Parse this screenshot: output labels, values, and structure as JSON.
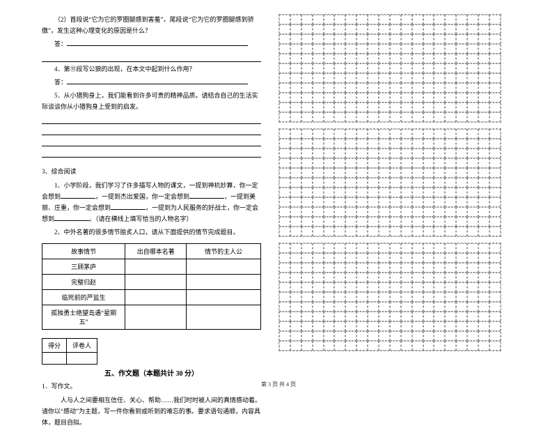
{
  "left": {
    "q2": "（2）首段说“它为它的罗圈腿感到害羞”，尾段说“它为它的罗圈腿感到骄傲”，发生这种心理变化的原因是什么？",
    "ans_label": "答：",
    "q4": "4．第⑪段写公狼的出现，在本文中起到什么作用？",
    "q5": "5．从小猎狗身上，我们能看到许多可贵的精神品质。请结合自己的生活实际谈谈你从小猎狗身上受到的启发。",
    "section3": "3、综合阅读",
    "s3_q1a": "1、小学阶段，我们学习了许多描写人物的课文，一提到神机妙算，你一定会想到",
    "s3_q1b": "，一提到杰出爱国，你一定会想到",
    "s3_q1c": "，一提到美丽、庄重，你一定会",
    "s3_q1d": "想到",
    "s3_q1e": "，一提到为人民服务的好战士，你一定会想到",
    "s3_q1f": "。（请在横线上填写恰当的人物名字）",
    "s3_q2": "2、中外名著的很多情节脍炙人口，请从下面提供的情节完成题目。",
    "table": {
      "headers": [
        "故事情节",
        "出自哪本名著",
        "情节的主人公"
      ],
      "rows": [
        "三顾茅庐",
        "完璧归赵",
        "临死前的严监生",
        "孤独勇士绝望岛遇“星期五”"
      ]
    },
    "score_headers": [
      "得分",
      "评卷人"
    ],
    "section5_title": "五、作文题（本题共计 30 分）",
    "essay_label": "1．写作文。",
    "essay_text": "人与人之间要相互信任、关心、帮助……我们时时被人间的真情感动着。请你以“感动”为主题，写一件你看到或听到的难忘的事。要求语句通顺，内容具体，题目自拟。"
  },
  "footer": "第 3 页  共 4 页",
  "grid": {
    "rows": 11,
    "cols": 20,
    "boxes": 3
  }
}
